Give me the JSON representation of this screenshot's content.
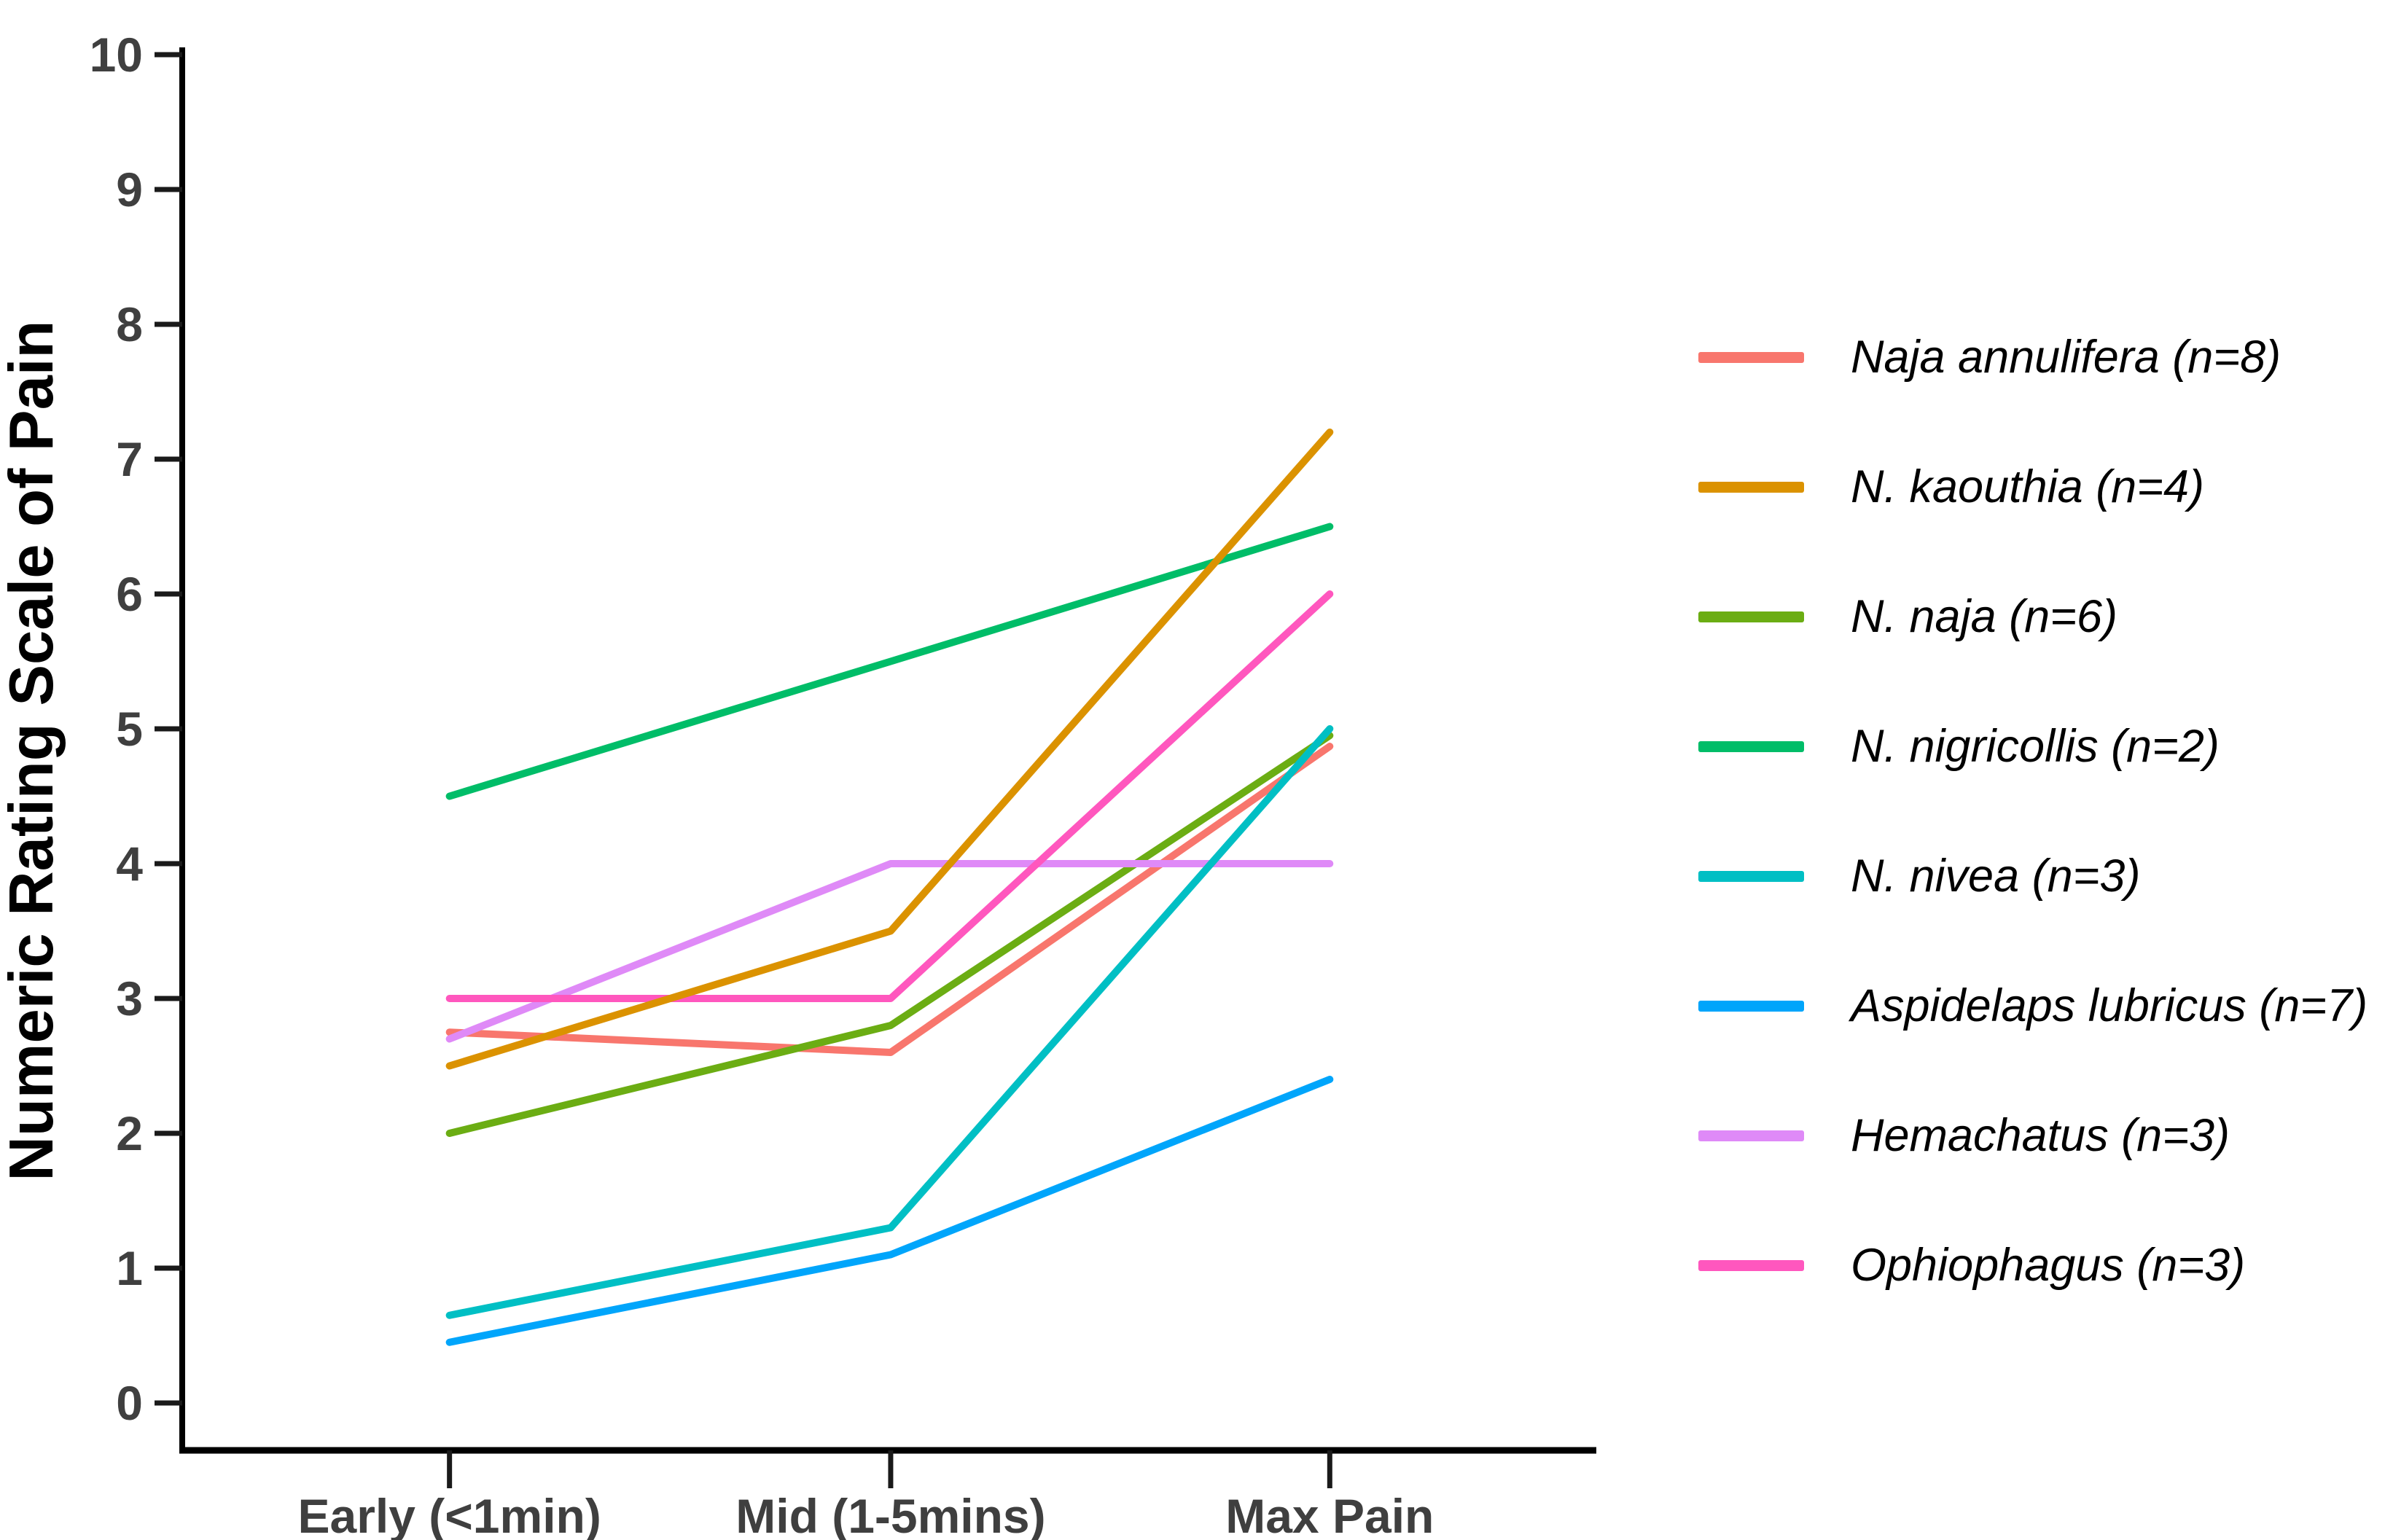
{
  "figure": {
    "background": "#ffffff"
  },
  "chart_data": {
    "type": "line",
    "title": "",
    "xlabel": "",
    "ylabel": "Numeric Rating Scale of Pain",
    "categories": [
      "Early (<1min)",
      "Mid (1-5mins)",
      "Max Pain"
    ],
    "ylim": [
      0,
      10
    ],
    "yticks": [
      0,
      1,
      2,
      3,
      4,
      5,
      6,
      7,
      8,
      9,
      10
    ],
    "grid": false,
    "legend_position": "right",
    "series": [
      {
        "name": "Naja annulifera (n=8)",
        "color": "#F8766D",
        "values": [
          2.75,
          2.6,
          4.87
        ]
      },
      {
        "name": "N. kaouthia (n=4)",
        "color": "#DB9200",
        "values": [
          2.5,
          3.5,
          7.2
        ]
      },
      {
        "name": "N. naja (n=6)",
        "color": "#6BAD13",
        "values": [
          2.0,
          2.8,
          4.95
        ]
      },
      {
        "name": "N. nigricollis (n=2)",
        "color": "#00BD68",
        "values": [
          4.5,
          5.5,
          6.5
        ]
      },
      {
        "name": "N. nivea (n=3)",
        "color": "#00BFC4",
        "values": [
          0.65,
          1.3,
          5.0
        ]
      },
      {
        "name": "Aspidelaps lubricus (n=7)",
        "color": "#00A5FB",
        "values": [
          0.45,
          1.1,
          2.4
        ]
      },
      {
        "name": "Hemachatus (n=3)",
        "color": "#DF8AF7",
        "values": [
          2.7,
          4.0,
          4.0
        ]
      },
      {
        "name": "Ophiophagus (n=3)",
        "color": "#FF57BE",
        "values": [
          3.0,
          3.0,
          6.0
        ]
      }
    ],
    "draw_order": [
      0,
      3,
      2,
      6,
      7,
      1,
      5,
      4
    ],
    "style": {
      "axis_color": "#000000",
      "tick_color": "#1a1a1a",
      "tick_label_color": "#3f3f3f",
      "axis_title_color": "#000000",
      "legend_text_color": "#000000",
      "line_width": 10
    }
  }
}
